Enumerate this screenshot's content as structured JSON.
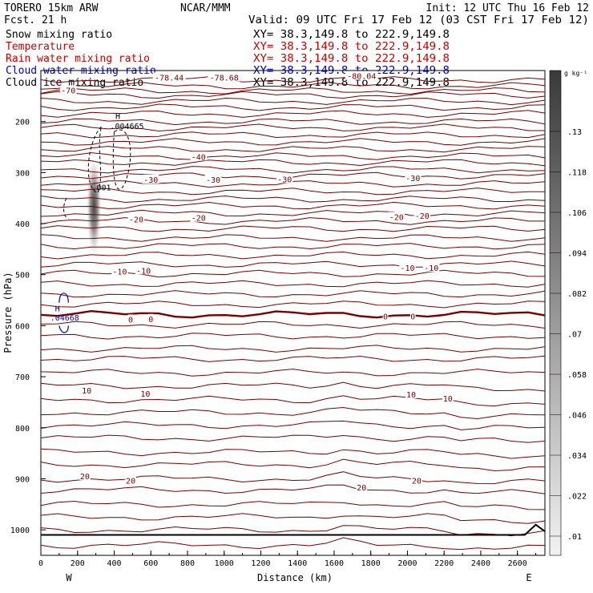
{
  "header": {
    "title_left": "TORERO  15km ARW",
    "center": "NCAR/MMM",
    "init": "Init: 12 UTC Thu 16 Feb 12",
    "fcst": "Fcst.    21 h",
    "valid": "Valid: 09 UTC Fri 17 Feb 12 (03 CST Fri 17 Feb 12)"
  },
  "fields": [
    {
      "name": "Snow mixing ratio",
      "xy": "XY=  38.3,149.8 to 222.9,149.8",
      "color": "#000000"
    },
    {
      "name": "Temperature",
      "xy": "XY=  38.3,149.8 to 222.9,149.8",
      "color": "#cc0000"
    },
    {
      "name": "Rain water mixing ratio",
      "xy": "XY=  38.3,149.8 to 222.9,149.8",
      "color": "#cc0000"
    },
    {
      "name": "Cloud water mixing ratio",
      "xy": "XY=  38.3,149.8 to 222.9,149.8",
      "color": "#0000cc"
    },
    {
      "name": "Cloud ice mixing ratio",
      "xy": "XY=  38.3,149.8 to 222.9,149.8",
      "color": "#000000"
    }
  ],
  "colorbar": {
    "unit": "g kg⁻¹",
    "labels": [
      ".13",
      ".118",
      ".106",
      ".094",
      ".082",
      ".07",
      ".058",
      ".046",
      ".034",
      ".022",
      ".01"
    ]
  },
  "chart_data": {
    "type": "contour",
    "xlabel": "Distance (km)",
    "ylabel": "Pressure (hPa)",
    "xlim": [
      0,
      2750
    ],
    "ylim": [
      1050,
      100
    ],
    "x_ticks": [
      0,
      200,
      400,
      600,
      800,
      1000,
      1200,
      1400,
      1600,
      1800,
      2000,
      2200,
      2400,
      2600
    ],
    "y_ticks": [
      200,
      300,
      400,
      500,
      600,
      700,
      800,
      900,
      1000
    ],
    "x_end_labels": {
      "left": "W",
      "right": "E"
    },
    "temperature_labels": [
      {
        "text": "-70",
        "x": 150,
        "p": 140
      },
      {
        "text": "-78.44",
        "x": 700,
        "p": 115
      },
      {
        "text": "-78.68",
        "x": 1000,
        "p": 115
      },
      {
        "text": "-80.04",
        "x": 1750,
        "p": 112
      },
      {
        "text": "-40",
        "x": 860,
        "p": 270
      },
      {
        "text": "-30",
        "x": 600,
        "p": 315
      },
      {
        "text": "-30",
        "x": 940,
        "p": 315
      },
      {
        "text": "-30",
        "x": 1330,
        "p": 314
      },
      {
        "text": "-30",
        "x": 2030,
        "p": 312
      },
      {
        "text": "-20",
        "x": 520,
        "p": 393
      },
      {
        "text": "-20",
        "x": 860,
        "p": 390
      },
      {
        "text": "-20",
        "x": 1940,
        "p": 388
      },
      {
        "text": "-20",
        "x": 2080,
        "p": 386
      },
      {
        "text": "-10",
        "x": 430,
        "p": 495
      },
      {
        "text": "-10",
        "x": 560,
        "p": 493
      },
      {
        "text": "-10",
        "x": 2000,
        "p": 488
      },
      {
        "text": "-10",
        "x": 2130,
        "p": 488
      },
      {
        "text": "0",
        "x": 490,
        "p": 589
      },
      {
        "text": "0",
        "x": 600,
        "p": 588
      },
      {
        "text": "0",
        "x": 1880,
        "p": 583
      },
      {
        "text": "0",
        "x": 2030,
        "p": 583
      },
      {
        "text": "10",
        "x": 250,
        "p": 728
      },
      {
        "text": "10",
        "x": 570,
        "p": 734
      },
      {
        "text": "10",
        "x": 2020,
        "p": 736
      },
      {
        "text": "10",
        "x": 2220,
        "p": 744
      },
      {
        "text": "20",
        "x": 240,
        "p": 896
      },
      {
        "text": "20",
        "x": 490,
        "p": 905
      },
      {
        "text": "20",
        "x": 1750,
        "p": 918
      },
      {
        "text": "20",
        "x": 2050,
        "p": 905
      }
    ],
    "annotations": [
      {
        "text": "H",
        "x": 420,
        "p": 195,
        "color": "#000000"
      },
      {
        "text": ".004665",
        "x": 470,
        "p": 215,
        "color": "#000000"
      },
      {
        "text": ".001",
        "x": 330,
        "p": 335,
        "color": "#000000"
      },
      {
        "text": "H",
        "x": 90,
        "p": 572,
        "color": "#0000cc"
      },
      {
        "text": ".04668",
        "x": 130,
        "p": 590,
        "color": "#0000cc"
      }
    ],
    "freezing_level_hpa": 585,
    "snow_max_g_per_kg": 0.13,
    "snow_core": {
      "x": 290,
      "p_top": 280,
      "p_bottom": 450
    }
  }
}
